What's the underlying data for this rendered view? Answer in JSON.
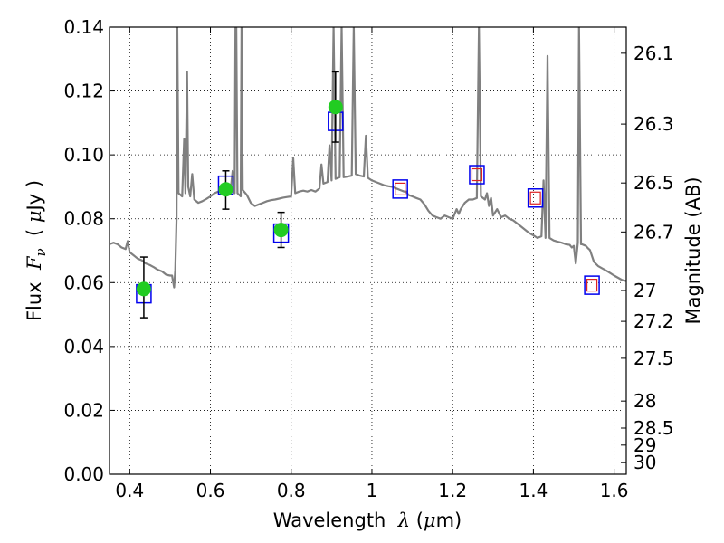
{
  "chart_data": {
    "type": "scatter",
    "xlabel": {
      "pre": "Wavelength  ",
      "sym": "λ",
      "post": " (",
      "mu": "μ",
      "unit": "m)"
    },
    "ylabel": {
      "pre": "Flux  ",
      "sym": "F",
      "sub": "ν",
      "mid": "  ( ",
      "mu": "μ",
      "post": "Jy )"
    },
    "y2label": "Magnitude (AB)",
    "xlim": [
      0.35,
      1.63
    ],
    "ylim": [
      0.0,
      0.14
    ],
    "grid": true,
    "x_ticks": [
      {
        "v": 0.4,
        "label": "0.4"
      },
      {
        "v": 0.6,
        "label": "0.6"
      },
      {
        "v": 0.8,
        "label": "0.8"
      },
      {
        "v": 1.0,
        "label": "1"
      },
      {
        "v": 1.2,
        "label": "1.2"
      },
      {
        "v": 1.4,
        "label": "1.4"
      },
      {
        "v": 1.6,
        "label": "1.6"
      }
    ],
    "y_ticks": [
      {
        "v": 0.0,
        "label": "0.00"
      },
      {
        "v": 0.02,
        "label": "0.02"
      },
      {
        "v": 0.04,
        "label": "0.04"
      },
      {
        "v": 0.06,
        "label": "0.06"
      },
      {
        "v": 0.08,
        "label": "0.08"
      },
      {
        "v": 0.1,
        "label": "0.10"
      },
      {
        "v": 0.12,
        "label": "0.12"
      },
      {
        "v": 0.14,
        "label": "0.14"
      }
    ],
    "mag_ticks": [
      {
        "mag": 26.1,
        "label": "26.1"
      },
      {
        "mag": 26.3,
        "label": "26.3"
      },
      {
        "mag": 26.5,
        "label": "26.5"
      },
      {
        "mag": 26.7,
        "label": "26.7"
      },
      {
        "mag": 27,
        "label": "27"
      },
      {
        "mag": 27.2,
        "label": "27.2"
      },
      {
        "mag": 27.5,
        "label": "27.5"
      },
      {
        "mag": 28,
        "label": "28"
      },
      {
        "mag": 28.5,
        "label": "28.5"
      },
      {
        "mag": 29,
        "label": "29"
      },
      {
        "mag": 30,
        "label": "30"
      }
    ],
    "model_spectrum": {
      "color": "#808080",
      "points": [
        [
          0.35,
          0.072
        ],
        [
          0.36,
          0.0725
        ],
        [
          0.37,
          0.072
        ],
        [
          0.38,
          0.071
        ],
        [
          0.39,
          0.0705
        ],
        [
          0.395,
          0.073
        ],
        [
          0.4,
          0.0695
        ],
        [
          0.41,
          0.0685
        ],
        [
          0.42,
          0.0675
        ],
        [
          0.43,
          0.067
        ],
        [
          0.44,
          0.066
        ],
        [
          0.45,
          0.0655
        ],
        [
          0.46,
          0.0648
        ],
        [
          0.47,
          0.064
        ],
        [
          0.48,
          0.0635
        ],
        [
          0.49,
          0.0625
        ],
        [
          0.5,
          0.0622
        ],
        [
          0.505,
          0.0622
        ],
        [
          0.51,
          0.0585
        ],
        [
          0.513,
          0.064
        ],
        [
          0.516,
          0.08
        ],
        [
          0.518,
          0.14
        ],
        [
          0.521,
          0.088
        ],
        [
          0.53,
          0.087
        ],
        [
          0.535,
          0.105
        ],
        [
          0.538,
          0.088
        ],
        [
          0.542,
          0.126
        ],
        [
          0.545,
          0.09
        ],
        [
          0.55,
          0.087
        ],
        [
          0.555,
          0.094
        ],
        [
          0.56,
          0.086
        ],
        [
          0.57,
          0.085
        ],
        [
          0.58,
          0.0855
        ],
        [
          0.59,
          0.0862
        ],
        [
          0.6,
          0.087
        ],
        [
          0.61,
          0.088
        ],
        [
          0.62,
          0.0885
        ],
        [
          0.63,
          0.089
        ],
        [
          0.64,
          0.0895
        ],
        [
          0.65,
          0.089
        ],
        [
          0.655,
          0.095
        ],
        [
          0.66,
          0.088
        ],
        [
          0.662,
          0.14
        ],
        [
          0.664,
          0.14
        ],
        [
          0.667,
          0.088
        ],
        [
          0.675,
          0.087
        ],
        [
          0.677,
          0.14
        ],
        [
          0.68,
          0.089
        ],
        [
          0.69,
          0.0875
        ],
        [
          0.7,
          0.085
        ],
        [
          0.71,
          0.084
        ],
        [
          0.72,
          0.0845
        ],
        [
          0.73,
          0.085
        ],
        [
          0.74,
          0.0855
        ],
        [
          0.75,
          0.0858
        ],
        [
          0.76,
          0.086
        ],
        [
          0.77,
          0.0863
        ],
        [
          0.78,
          0.0866
        ],
        [
          0.79,
          0.0868
        ],
        [
          0.8,
          0.087
        ],
        [
          0.805,
          0.099
        ],
        [
          0.81,
          0.088
        ],
        [
          0.82,
          0.0885
        ],
        [
          0.83,
          0.0888
        ],
        [
          0.84,
          0.0885
        ],
        [
          0.85,
          0.089
        ],
        [
          0.86,
          0.0885
        ],
        [
          0.87,
          0.0895
        ],
        [
          0.875,
          0.097
        ],
        [
          0.88,
          0.091
        ],
        [
          0.89,
          0.0915
        ],
        [
          0.895,
          0.103
        ],
        [
          0.9,
          0.092
        ],
        [
          0.905,
          0.14
        ],
        [
          0.91,
          0.0925
        ],
        [
          0.92,
          0.093
        ],
        [
          0.925,
          0.14
        ],
        [
          0.93,
          0.093
        ],
        [
          0.94,
          0.0932
        ],
        [
          0.95,
          0.0935
        ],
        [
          0.955,
          0.14
        ],
        [
          0.96,
          0.094
        ],
        [
          0.97,
          0.0935
        ],
        [
          0.98,
          0.0932
        ],
        [
          0.985,
          0.106
        ],
        [
          0.99,
          0.0928
        ],
        [
          1.0,
          0.092
        ],
        [
          1.01,
          0.0915
        ],
        [
          1.02,
          0.091
        ],
        [
          1.03,
          0.0905
        ],
        [
          1.04,
          0.0902
        ],
        [
          1.05,
          0.09
        ],
        [
          1.06,
          0.0895
        ],
        [
          1.07,
          0.089
        ],
        [
          1.08,
          0.0885
        ],
        [
          1.085,
          0.0885
        ],
        [
          1.09,
          0.0875
        ],
        [
          1.1,
          0.087
        ],
        [
          1.11,
          0.0865
        ],
        [
          1.12,
          0.086
        ],
        [
          1.13,
          0.0845
        ],
        [
          1.14,
          0.0825
        ],
        [
          1.15,
          0.081
        ],
        [
          1.16,
          0.0805
        ],
        [
          1.17,
          0.08
        ],
        [
          1.18,
          0.081
        ],
        [
          1.19,
          0.0805
        ],
        [
          1.2,
          0.08
        ],
        [
          1.21,
          0.083
        ],
        [
          1.215,
          0.0815
        ],
        [
          1.22,
          0.083
        ],
        [
          1.23,
          0.085
        ],
        [
          1.24,
          0.086
        ],
        [
          1.25,
          0.086
        ],
        [
          1.26,
          0.0865
        ],
        [
          1.265,
          0.14
        ],
        [
          1.27,
          0.087
        ],
        [
          1.28,
          0.086
        ],
        [
          1.285,
          0.088
        ],
        [
          1.29,
          0.084
        ],
        [
          1.295,
          0.0865
        ],
        [
          1.3,
          0.081
        ],
        [
          1.31,
          0.083
        ],
        [
          1.32,
          0.0805
        ],
        [
          1.33,
          0.081
        ],
        [
          1.34,
          0.08
        ],
        [
          1.35,
          0.0795
        ],
        [
          1.36,
          0.0785
        ],
        [
          1.37,
          0.0775
        ],
        [
          1.38,
          0.0765
        ],
        [
          1.39,
          0.0755
        ],
        [
          1.4,
          0.0748
        ],
        [
          1.41,
          0.074
        ],
        [
          1.42,
          0.0745
        ],
        [
          1.425,
          0.092
        ],
        [
          1.43,
          0.074
        ],
        [
          1.435,
          0.131
        ],
        [
          1.44,
          0.074
        ],
        [
          1.45,
          0.0732
        ],
        [
          1.46,
          0.0728
        ],
        [
          1.47,
          0.0725
        ],
        [
          1.48,
          0.072
        ],
        [
          1.49,
          0.0718
        ],
        [
          1.495,
          0.071
        ],
        [
          1.5,
          0.0715
        ],
        [
          1.505,
          0.066
        ],
        [
          1.51,
          0.0725
        ],
        [
          1.513,
          0.14
        ],
        [
          1.518,
          0.072
        ],
        [
          1.52,
          0.072
        ],
        [
          1.53,
          0.0715
        ],
        [
          1.535,
          0.0708
        ],
        [
          1.54,
          0.0702
        ],
        [
          1.55,
          0.0665
        ],
        [
          1.56,
          0.0652
        ],
        [
          1.57,
          0.0645
        ],
        [
          1.58,
          0.0638
        ],
        [
          1.59,
          0.063
        ],
        [
          1.6,
          0.0622
        ],
        [
          1.61,
          0.0615
        ],
        [
          1.62,
          0.0608
        ],
        [
          1.63,
          0.0605
        ]
      ]
    },
    "observed": {
      "color": "#22cc22",
      "points": [
        {
          "x": 0.435,
          "y": 0.058,
          "ylo": 0.049,
          "yhi": 0.068
        },
        {
          "x": 0.638,
          "y": 0.0892,
          "ylo": 0.083,
          "yhi": 0.095
        },
        {
          "x": 0.775,
          "y": 0.0765,
          "ylo": 0.071,
          "yhi": 0.082
        },
        {
          "x": 0.91,
          "y": 0.115,
          "ylo": 0.104,
          "yhi": 0.126
        }
      ]
    },
    "model_bands": {
      "color": "#0000ee",
      "points": [
        {
          "x": 0.435,
          "y": 0.0565
        },
        {
          "x": 0.638,
          "y": 0.0905
        },
        {
          "x": 0.775,
          "y": 0.0755
        },
        {
          "x": 0.91,
          "y": 0.1105
        },
        {
          "x": 1.07,
          "y": 0.0893
        },
        {
          "x": 1.26,
          "y": 0.0938
        },
        {
          "x": 1.405,
          "y": 0.0865
        },
        {
          "x": 1.545,
          "y": 0.0592
        }
      ]
    },
    "upper_bands": {
      "color": "#dd2222",
      "points": [
        {
          "x": 1.07,
          "y": 0.0893
        },
        {
          "x": 1.26,
          "y": 0.0938
        },
        {
          "x": 1.405,
          "y": 0.0865
        },
        {
          "x": 1.545,
          "y": 0.0592
        }
      ]
    }
  }
}
